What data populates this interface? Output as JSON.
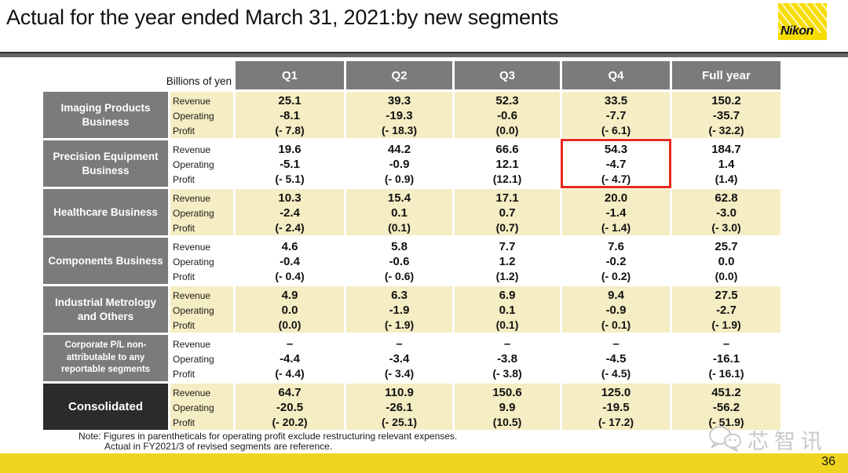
{
  "title": "Actual for the year ended March 31, 2021:by new segments",
  "logo_text": "Nikon",
  "table": {
    "unit_label": "Billions of yen",
    "columns": [
      "Q1",
      "Q2",
      "Q3",
      "Q4",
      "Full year"
    ],
    "row_labels": {
      "revenue": "Revenue",
      "operating": "Operating",
      "profit": "Profit"
    },
    "highlight": {
      "segment_index": 1,
      "column_index": 3,
      "color": "#E8281E"
    },
    "segments": [
      {
        "name": "Imaging Products Business",
        "bg": "cream",
        "label_variant": "normal",
        "revenue": [
          "25.1",
          "39.3",
          "52.3",
          "33.5",
          "150.2"
        ],
        "operating_profit": [
          "-8.1",
          "-19.3",
          "-0.6",
          "-7.7",
          "-35.7"
        ],
        "operating_profit_paren": [
          "(- 7.8)",
          "(- 18.3)",
          "(0.0)",
          "(- 6.1)",
          "(- 32.2)"
        ]
      },
      {
        "name": "Precision Equipment Business",
        "bg": "white",
        "label_variant": "normal",
        "revenue": [
          "19.6",
          "44.2",
          "66.6",
          "54.3",
          "184.7"
        ],
        "operating_profit": [
          "-5.1",
          "-0.9",
          "12.1",
          "-4.7",
          "1.4"
        ],
        "operating_profit_paren": [
          "(- 5.1)",
          "(- 0.9)",
          "(12.1)",
          "(- 4.7)",
          "(1.4)"
        ]
      },
      {
        "name": "Healthcare Business",
        "bg": "cream",
        "label_variant": "normal",
        "revenue": [
          "10.3",
          "15.4",
          "17.1",
          "20.0",
          "62.8"
        ],
        "operating_profit": [
          "-2.4",
          "0.1",
          "0.7",
          "-1.4",
          "-3.0"
        ],
        "operating_profit_paren": [
          "(- 2.4)",
          "(0.1)",
          "(0.7)",
          "(- 1.4)",
          "(- 3.0)"
        ]
      },
      {
        "name": "Components Business",
        "bg": "white",
        "label_variant": "normal",
        "revenue": [
          "4.6",
          "5.8",
          "7.7",
          "7.6",
          "25.7"
        ],
        "operating_profit": [
          "-0.4",
          "-0.6",
          "1.2",
          "-0.2",
          "0.0"
        ],
        "operating_profit_paren": [
          "(- 0.4)",
          "(- 0.6)",
          "(1.2)",
          "(- 0.2)",
          "(0.0)"
        ]
      },
      {
        "name": "Industrial Metrology and Others",
        "bg": "cream",
        "label_variant": "normal",
        "revenue": [
          "4.9",
          "6.3",
          "6.9",
          "9.4",
          "27.5"
        ],
        "operating_profit": [
          "0.0",
          "-1.9",
          "0.1",
          "-0.9",
          "-2.7"
        ],
        "operating_profit_paren": [
          "(0.0)",
          "(- 1.9)",
          "(0.1)",
          "(- 0.1)",
          "(- 1.9)"
        ]
      },
      {
        "name": "Corporate P/L non-attributable to any reportable  segments",
        "bg": "white",
        "label_variant": "small",
        "revenue": [
          "–",
          "–",
          "–",
          "–",
          "–"
        ],
        "operating_profit": [
          "-4.4",
          "-3.4",
          "-3.8",
          "-4.5",
          "-16.1"
        ],
        "operating_profit_paren": [
          "(- 4.4)",
          "(- 3.4)",
          "(- 3.8)",
          "(- 4.5)",
          "(- 16.1)"
        ]
      },
      {
        "name": "Consolidated",
        "bg": "cream",
        "label_variant": "dark",
        "revenue": [
          "64.7",
          "110.9",
          "150.6",
          "125.0",
          "451.2"
        ],
        "operating_profit": [
          "-20.5",
          "-26.1",
          "9.9",
          "-19.5",
          "-56.2"
        ],
        "operating_profit_paren": [
          "(- 20.2)",
          "(- 25.1)",
          "(10.5)",
          "(- 17.2)",
          "(- 51.9)"
        ]
      }
    ]
  },
  "note": {
    "line1": "Note: Figures in parentheticals for operating profit exclude restructuring relevant expenses.",
    "line2": "Actual in FY2021/3 of revised segments are reference."
  },
  "watermark_text": "芯智讯",
  "footer": {
    "page_number": "36",
    "bar_color": "#EFD51F"
  },
  "colors": {
    "header_gray": "#7B7B7B",
    "consolidated_dark": "#2B2B2B",
    "row_cream": "#F5EDC3",
    "row_white": "#FFFFFF",
    "accent_red": "#E8281E",
    "nikon_yellow": "#F6DC00",
    "footer_yellow": "#EFD51F"
  }
}
